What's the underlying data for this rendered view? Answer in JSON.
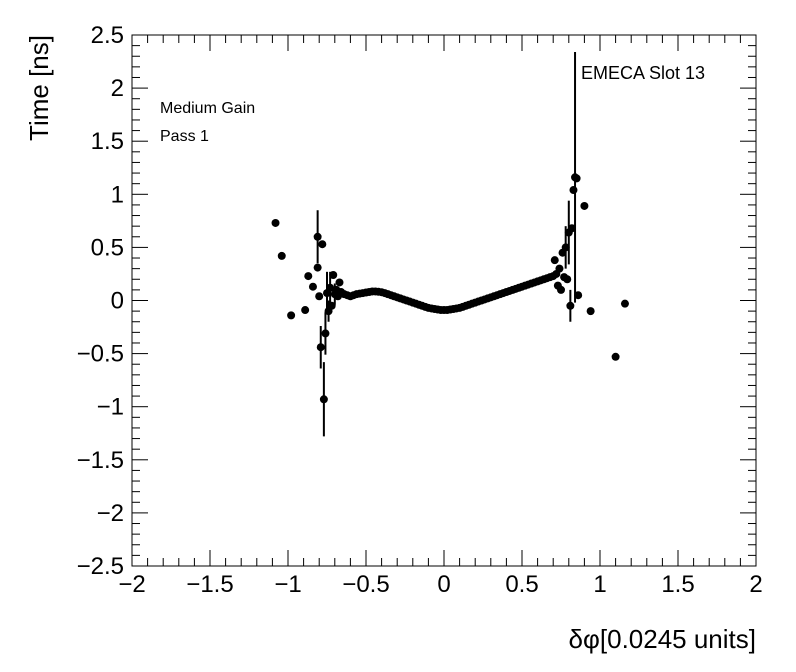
{
  "chart_data": {
    "type": "scatter",
    "xlabel": "δφ[0.0245 units]",
    "ylabel": "Time [ns]",
    "xlim": [
      -2,
      2
    ],
    "ylim": [
      -2.5,
      2.5
    ],
    "x_ticks": [
      -2,
      -1.5,
      -1,
      -0.5,
      0,
      0.5,
      1,
      1.5,
      2
    ],
    "y_ticks": [
      -2.5,
      -2,
      -1.5,
      -1,
      -0.5,
      0,
      0.5,
      1,
      1.5,
      2,
      2.5
    ],
    "x_tick_labels": [
      "−2",
      "−1.5",
      "−1",
      "−0.5",
      "0",
      "0.5",
      "1",
      "1.5",
      "2"
    ],
    "y_tick_labels": [
      "−2.5",
      "−2",
      "−1.5",
      "−1",
      "−0.5",
      "0",
      "0.5",
      "1",
      "1.5",
      "2",
      "2.5"
    ],
    "grid": false,
    "annotations": {
      "gain": "Medium Gain",
      "pass": "Pass 1",
      "slot": "EMECA Slot 13"
    },
    "series": [
      {
        "marker_color": "#000000",
        "points": [
          {
            "x": -1.08,
            "y": 0.73,
            "err": 0.0
          },
          {
            "x": -1.04,
            "y": 0.42,
            "err": 0.0
          },
          {
            "x": -0.98,
            "y": -0.14,
            "err": 0.0
          },
          {
            "x": -0.89,
            "y": -0.09,
            "err": 0.0
          },
          {
            "x": -0.87,
            "y": 0.23,
            "err": 0.0
          },
          {
            "x": -0.84,
            "y": 0.13,
            "err": 0.0
          },
          {
            "x": -0.81,
            "y": 0.31,
            "err": 0.0
          },
          {
            "x": -0.81,
            "y": 0.6,
            "err": 0.25
          },
          {
            "x": -0.8,
            "y": 0.04,
            "err": 0.0
          },
          {
            "x": -0.79,
            "y": -0.44,
            "err": 0.2
          },
          {
            "x": -0.78,
            "y": 0.53,
            "err": 0.0
          },
          {
            "x": -0.77,
            "y": -0.93,
            "err": 0.35
          },
          {
            "x": -0.76,
            "y": -0.31,
            "err": 0.2
          },
          {
            "x": -0.75,
            "y": 0.07,
            "err": 0.2
          },
          {
            "x": -0.74,
            "y": -0.1,
            "err": 0.1
          },
          {
            "x": -0.73,
            "y": 0.12,
            "err": 0.15
          },
          {
            "x": -0.72,
            "y": -0.05,
            "err": 0.0
          },
          {
            "x": -0.71,
            "y": 0.24,
            "err": 0.0
          },
          {
            "x": -0.7,
            "y": 0.06,
            "err": 0.1
          },
          {
            "x": -0.69,
            "y": 0.1,
            "err": 0.0
          },
          {
            "x": -0.68,
            "y": 0.04,
            "err": 0.0
          },
          {
            "x": -0.67,
            "y": 0.17,
            "err": 0.0
          },
          {
            "x": -0.66,
            "y": 0.08,
            "err": 0.0
          },
          {
            "x": -0.64,
            "y": 0.06,
            "err": 0.0
          },
          {
            "x": -0.62,
            "y": 0.05,
            "err": 0.0
          },
          {
            "x": -0.6,
            "y": 0.04,
            "err": 0.0
          },
          {
            "x": -0.58,
            "y": 0.05,
            "err": 0.0
          },
          {
            "x": -0.56,
            "y": 0.06,
            "err": 0.0
          },
          {
            "x": -0.54,
            "y": 0.065,
            "err": 0.0
          },
          {
            "x": -0.52,
            "y": 0.07,
            "err": 0.0
          },
          {
            "x": -0.5,
            "y": 0.075,
            "err": 0.0
          },
          {
            "x": -0.48,
            "y": 0.08,
            "err": 0.0
          },
          {
            "x": -0.46,
            "y": 0.085,
            "err": 0.0
          },
          {
            "x": -0.44,
            "y": 0.085,
            "err": 0.0
          },
          {
            "x": -0.42,
            "y": 0.082,
            "err": 0.0
          },
          {
            "x": -0.4,
            "y": 0.078,
            "err": 0.0
          },
          {
            "x": -0.38,
            "y": 0.07,
            "err": 0.0
          },
          {
            "x": -0.36,
            "y": 0.06,
            "err": 0.0
          },
          {
            "x": -0.34,
            "y": 0.05,
            "err": 0.0
          },
          {
            "x": -0.32,
            "y": 0.04,
            "err": 0.0
          },
          {
            "x": -0.3,
            "y": 0.03,
            "err": 0.0
          },
          {
            "x": -0.28,
            "y": 0.02,
            "err": 0.0
          },
          {
            "x": -0.26,
            "y": 0.01,
            "err": 0.0
          },
          {
            "x": -0.24,
            "y": 0.0,
            "err": 0.0
          },
          {
            "x": -0.22,
            "y": -0.01,
            "err": 0.0
          },
          {
            "x": -0.2,
            "y": -0.02,
            "err": 0.0
          },
          {
            "x": -0.18,
            "y": -0.03,
            "err": 0.0
          },
          {
            "x": -0.16,
            "y": -0.04,
            "err": 0.0
          },
          {
            "x": -0.14,
            "y": -0.05,
            "err": 0.0
          },
          {
            "x": -0.12,
            "y": -0.06,
            "err": 0.0
          },
          {
            "x": -0.1,
            "y": -0.07,
            "err": 0.0
          },
          {
            "x": -0.08,
            "y": -0.075,
            "err": 0.0
          },
          {
            "x": -0.06,
            "y": -0.08,
            "err": 0.0
          },
          {
            "x": -0.04,
            "y": -0.085,
            "err": 0.0
          },
          {
            "x": -0.02,
            "y": -0.09,
            "err": 0.0
          },
          {
            "x": 0.0,
            "y": -0.09,
            "err": 0.0
          },
          {
            "x": 0.02,
            "y": -0.09,
            "err": 0.0
          },
          {
            "x": 0.04,
            "y": -0.085,
            "err": 0.0
          },
          {
            "x": 0.06,
            "y": -0.08,
            "err": 0.0
          },
          {
            "x": 0.08,
            "y": -0.075,
            "err": 0.0
          },
          {
            "x": 0.1,
            "y": -0.07,
            "err": 0.0
          },
          {
            "x": 0.12,
            "y": -0.06,
            "err": 0.0
          },
          {
            "x": 0.14,
            "y": -0.05,
            "err": 0.0
          },
          {
            "x": 0.16,
            "y": -0.04,
            "err": 0.0
          },
          {
            "x": 0.18,
            "y": -0.03,
            "err": 0.0
          },
          {
            "x": 0.2,
            "y": -0.02,
            "err": 0.0
          },
          {
            "x": 0.22,
            "y": -0.01,
            "err": 0.0
          },
          {
            "x": 0.24,
            "y": 0.0,
            "err": 0.0
          },
          {
            "x": 0.26,
            "y": 0.01,
            "err": 0.0
          },
          {
            "x": 0.28,
            "y": 0.02,
            "err": 0.0
          },
          {
            "x": 0.3,
            "y": 0.03,
            "err": 0.0
          },
          {
            "x": 0.32,
            "y": 0.04,
            "err": 0.0
          },
          {
            "x": 0.34,
            "y": 0.05,
            "err": 0.0
          },
          {
            "x": 0.36,
            "y": 0.06,
            "err": 0.0
          },
          {
            "x": 0.38,
            "y": 0.07,
            "err": 0.0
          },
          {
            "x": 0.4,
            "y": 0.08,
            "err": 0.0
          },
          {
            "x": 0.42,
            "y": 0.09,
            "err": 0.0
          },
          {
            "x": 0.44,
            "y": 0.1,
            "err": 0.0
          },
          {
            "x": 0.46,
            "y": 0.11,
            "err": 0.0
          },
          {
            "x": 0.48,
            "y": 0.12,
            "err": 0.0
          },
          {
            "x": 0.5,
            "y": 0.13,
            "err": 0.0
          },
          {
            "x": 0.52,
            "y": 0.14,
            "err": 0.0
          },
          {
            "x": 0.54,
            "y": 0.15,
            "err": 0.0
          },
          {
            "x": 0.56,
            "y": 0.16,
            "err": 0.0
          },
          {
            "x": 0.58,
            "y": 0.17,
            "err": 0.0
          },
          {
            "x": 0.6,
            "y": 0.18,
            "err": 0.0
          },
          {
            "x": 0.62,
            "y": 0.19,
            "err": 0.0
          },
          {
            "x": 0.64,
            "y": 0.2,
            "err": 0.0
          },
          {
            "x": 0.66,
            "y": 0.21,
            "err": 0.0
          },
          {
            "x": 0.68,
            "y": 0.22,
            "err": 0.0
          },
          {
            "x": 0.7,
            "y": 0.23,
            "err": 0.0
          },
          {
            "x": 0.71,
            "y": 0.38,
            "err": 0.0
          },
          {
            "x": 0.72,
            "y": 0.25,
            "err": 0.0
          },
          {
            "x": 0.73,
            "y": 0.14,
            "err": 0.0
          },
          {
            "x": 0.74,
            "y": 0.3,
            "err": 0.0
          },
          {
            "x": 0.75,
            "y": 0.1,
            "err": 0.0
          },
          {
            "x": 0.76,
            "y": 0.45,
            "err": 0.0
          },
          {
            "x": 0.77,
            "y": 0.22,
            "err": 0.0
          },
          {
            "x": 0.78,
            "y": 0.5,
            "err": 0.2
          },
          {
            "x": 0.79,
            "y": 0.2,
            "err": 0.0
          },
          {
            "x": 0.8,
            "y": 0.64,
            "err": 0.3
          },
          {
            "x": 0.81,
            "y": -0.05,
            "err": 0.15
          },
          {
            "x": 0.82,
            "y": 0.68,
            "err": 0.0
          },
          {
            "x": 0.83,
            "y": 1.04,
            "err": 0.0
          },
          {
            "x": 0.84,
            "y": 1.16,
            "err": 1.18
          },
          {
            "x": 0.85,
            "y": 1.15,
            "err": 0.0
          },
          {
            "x": 0.86,
            "y": 0.05,
            "err": 0.0
          },
          {
            "x": 0.9,
            "y": 0.89,
            "err": 0.0
          },
          {
            "x": 0.94,
            "y": -0.1,
            "err": 0.0
          },
          {
            "x": 1.1,
            "y": -0.53,
            "err": 0.0
          },
          {
            "x": 1.16,
            "y": -0.03,
            "err": 0.0
          }
        ]
      }
    ]
  }
}
